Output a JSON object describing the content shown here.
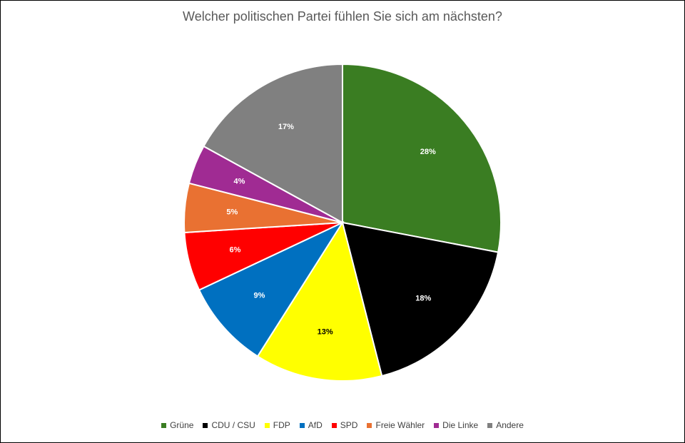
{
  "chart_data": {
    "type": "pie",
    "title": "Welcher politischen Partei fühlen Sie sich am nächsten?",
    "categories": [
      "Grüne",
      "CDU / CSU",
      "FDP",
      "AfD",
      "SPD",
      "Freie Wähler",
      "Die Linke",
      "Andere"
    ],
    "values": [
      28,
      18,
      13,
      9,
      6,
      5,
      4,
      17
    ],
    "labels": [
      "28%",
      "18%",
      "13%",
      "9%",
      "6%",
      "5%",
      "4%",
      "17%"
    ],
    "colors": [
      "#3a7d22",
      "#000000",
      "#ffff00",
      "#0070c0",
      "#ff0000",
      "#e97132",
      "#a02b93",
      "#808080"
    ],
    "label_colors": [
      "#ffffff",
      "#ffffff",
      "#000000",
      "#ffffff",
      "#ffffff",
      "#ffffff",
      "#ffffff",
      "#ffffff"
    ],
    "legend_position": "bottom",
    "start": "top, clockwise"
  }
}
